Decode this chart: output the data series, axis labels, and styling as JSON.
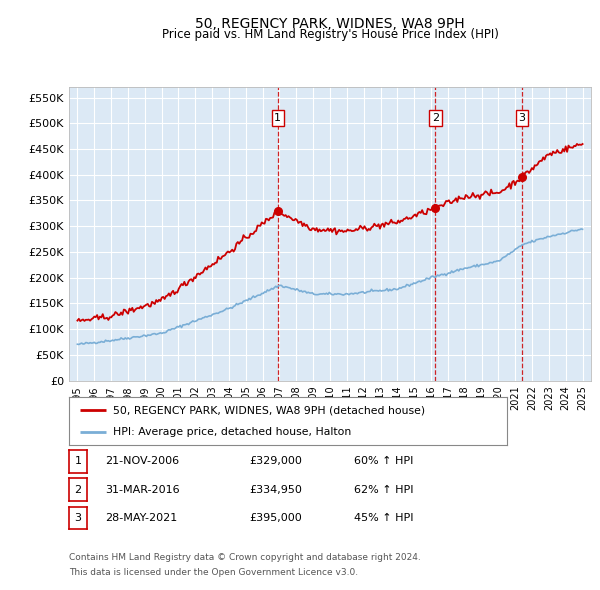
{
  "title": "50, REGENCY PARK, WIDNES, WA8 9PH",
  "subtitle": "Price paid vs. HM Land Registry's House Price Index (HPI)",
  "ytick_values": [
    0,
    50000,
    100000,
    150000,
    200000,
    250000,
    300000,
    350000,
    400000,
    450000,
    500000,
    550000
  ],
  "ylim": [
    0,
    570000
  ],
  "xlim_start": 1994.5,
  "xlim_end": 2025.5,
  "plot_bg_color": "#dce9f5",
  "grid_color": "#ffffff",
  "sale_dates": [
    2006.9,
    2016.25,
    2021.4
  ],
  "sale_prices": [
    329000,
    334950,
    395000
  ],
  "sale_labels": [
    "1",
    "2",
    "3"
  ],
  "legend_line1": "50, REGENCY PARK, WIDNES, WA8 9PH (detached house)",
  "legend_line2": "HPI: Average price, detached house, Halton",
  "table_data": [
    [
      "1",
      "21-NOV-2006",
      "£329,000",
      "60% ↑ HPI"
    ],
    [
      "2",
      "31-MAR-2016",
      "£334,950",
      "62% ↑ HPI"
    ],
    [
      "3",
      "28-MAY-2021",
      "£395,000",
      "45% ↑ HPI"
    ]
  ],
  "footnote1": "Contains HM Land Registry data © Crown copyright and database right 2024.",
  "footnote2": "This data is licensed under the Open Government Licence v3.0.",
  "red_line_color": "#cc0000",
  "blue_line_color": "#7aaed6",
  "dashed_vline_color": "#cc0000"
}
